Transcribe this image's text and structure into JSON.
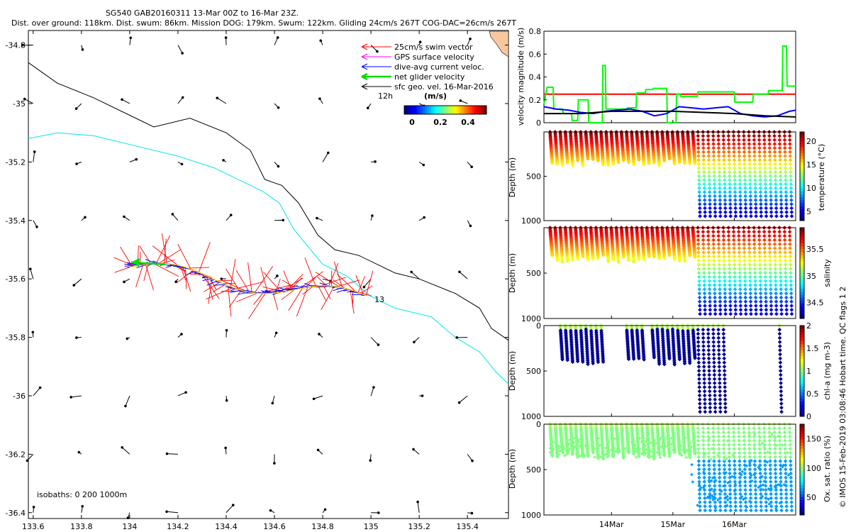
{
  "header": {
    "title_line1": "SG540 GAB20160311 13-Mar 00Z to 16-Mar 23Z.",
    "title_line2": "Dist. over ground: 118km. Dist. swum: 86km. Mission DOG: 179km. Swum: 122km. Gliding 24cm/s 267T COG-DAC=26cm/s 267T"
  },
  "map": {
    "xticks": [
      "133.6",
      "133.8",
      "134",
      "134.2",
      "134.4",
      "134.6",
      "134.8",
      "135",
      "135.2",
      "135.4"
    ],
    "xtick_values": [
      133.6,
      133.8,
      134.0,
      134.2,
      134.4,
      134.6,
      134.8,
      135.0,
      135.2,
      135.4
    ],
    "yticks": [
      "-34.8",
      "-35",
      "-35.2",
      "-35.4",
      "-35.6",
      "-35.8",
      "-36",
      "-36.2",
      "-36.4"
    ],
    "ytick_values": [
      -34.8,
      -35.0,
      -35.2,
      -35.4,
      -35.6,
      -35.8,
      -36.0,
      -36.2,
      -36.4
    ],
    "xlim": [
      133.58,
      135.57
    ],
    "ylim": [
      -36.42,
      -34.75
    ],
    "legend": [
      {
        "label": "25cm/s swim vector",
        "color": "#ff0000"
      },
      {
        "label": "GPS surface velocity",
        "color": "#ff00ff"
      },
      {
        "label": "dive-avg current veloc.",
        "color": "#0000ff"
      },
      {
        "label": "net glider velocity",
        "color": "#00dd00"
      },
      {
        "label": "sfc geo. vel. 16-Mar-2016",
        "color": "#000000"
      }
    ],
    "legend_12h": "12h",
    "colorbar_title": "(m/s)",
    "colorbar_ticks": [
      "0",
      "0.2",
      "0.4"
    ],
    "colorbar_range": [
      0,
      0.5
    ],
    "track_end_label": "13",
    "isobaths_label": "isobaths: 0   200  1000m",
    "track_start": {
      "lon": 134.0,
      "lat": -35.56
    },
    "track_end": {
      "lon": 134.98,
      "lat": -35.67
    }
  },
  "chart_data": [
    {
      "type": "line",
      "title": "",
      "ylabel": "velocity magnitude (m/s)",
      "ylim": [
        0,
        0.8
      ],
      "yticks": [
        "0",
        "0.2",
        "0.4",
        "0.6",
        "0.8"
      ],
      "ytick_values": [
        0,
        0.2,
        0.4,
        0.6,
        0.8
      ],
      "xlim": [
        12.9,
        17.0
      ],
      "series": [
        {
          "name": "swim speed 25cm/s",
          "color": "#ff0000",
          "x": [
            12.9,
            17.0
          ],
          "y": [
            0.25,
            0.25
          ]
        },
        {
          "name": "net glider velocity",
          "color": "#00ff00",
          "x": [
            12.9,
            12.95,
            12.97,
            13.05,
            13.06,
            13.2,
            13.22,
            13.35,
            13.36,
            13.45,
            13.46,
            13.62,
            13.63,
            13.85,
            13.86,
            13.9,
            13.91,
            14.25,
            14.26,
            14.4,
            14.41,
            14.55,
            14.56,
            14.67,
            14.68,
            14.9,
            14.91,
            15.05,
            15.06,
            15.12,
            15.13,
            15.4,
            15.41,
            15.55,
            15.56,
            16.0,
            16.01,
            16.3,
            16.31,
            16.55,
            16.56,
            16.78,
            16.79,
            16.85,
            16.86,
            17.0
          ],
          "y": [
            0.16,
            0.31,
            0.31,
            0.31,
            0.12,
            0.12,
            0.08,
            0.08,
            0.02,
            0.02,
            0.2,
            0.2,
            0.0,
            0.0,
            0.5,
            0.5,
            0.12,
            0.12,
            0.13,
            0.13,
            0.26,
            0.26,
            0.29,
            0.29,
            0.3,
            0.3,
            0.0,
            0.0,
            0.25,
            0.25,
            0.23,
            0.23,
            0.27,
            0.27,
            0.27,
            0.27,
            0.18,
            0.18,
            0.25,
            0.25,
            0.28,
            0.28,
            0.67,
            0.67,
            0.32,
            0.32
          ]
        },
        {
          "name": "dive-avg current",
          "color": "#0000ff",
          "x": [
            12.9,
            13.1,
            13.3,
            13.5,
            13.7,
            13.9,
            14.1,
            14.3,
            14.5,
            14.7,
            14.9,
            15.1,
            15.3,
            15.5,
            15.7,
            15.9,
            16.1,
            16.3,
            16.5,
            16.7,
            16.9,
            17.0
          ],
          "y": [
            0.14,
            0.12,
            0.11,
            0.09,
            0.08,
            0.1,
            0.11,
            0.12,
            0.1,
            0.06,
            0.08,
            0.14,
            0.13,
            0.12,
            0.13,
            0.14,
            0.08,
            0.06,
            0.05,
            0.06,
            0.1,
            0.11
          ]
        },
        {
          "name": "sfc geo velocity",
          "color": "#000000",
          "x": [
            12.9,
            13.5,
            14.0,
            14.5,
            15.0,
            15.5,
            16.0,
            16.5,
            17.0
          ],
          "y": [
            0.08,
            0.08,
            0.1,
            0.1,
            0.1,
            0.09,
            0.08,
            0.06,
            0.05
          ]
        }
      ]
    },
    {
      "type": "scatter",
      "ylabel": "Depth (m)",
      "cbar_label": "temperature (°C)",
      "cbar_ticks": [
        "5",
        "10",
        "15",
        "20"
      ],
      "cbar_range": [
        3,
        22
      ],
      "yticks": [
        "500",
        "1000"
      ],
      "ylim": [
        1000,
        0
      ],
      "profiles": {
        "shallow_depth": 300,
        "deep_depth": 950,
        "deep_start_day": 15.38,
        "n_dives": 48
      }
    },
    {
      "type": "scatter",
      "ylabel": "Depth (m)",
      "cbar_label": "salinity",
      "cbar_ticks": [
        "34.5",
        "35",
        "35.5"
      ],
      "cbar_range": [
        34.2,
        35.9
      ],
      "yticks": [
        "500",
        "1000"
      ],
      "ylim": [
        1000,
        0
      ]
    },
    {
      "type": "scatter",
      "ylabel": "Depth (m)",
      "cbar_label": "chl-a (mg m-3)",
      "cbar_ticks": [
        "0",
        "0.5",
        "1",
        "1.5",
        "2"
      ],
      "cbar_range": [
        0,
        2
      ],
      "yticks": [
        "0",
        "500",
        "1000"
      ],
      "ylim": [
        1000,
        0
      ]
    },
    {
      "type": "scatter",
      "ylabel": "Depth (m)",
      "cbar_label": "Ox. sat. ratio (%)",
      "cbar_ticks": [
        "50",
        "100",
        "150"
      ],
      "cbar_range": [
        20,
        175
      ],
      "yticks": [
        "0",
        "500",
        "1000"
      ],
      "ylim": [
        1000,
        0
      ],
      "xticks": [
        "14Mar",
        "15Mar",
        "16Mar"
      ],
      "xtick_values": [
        14,
        15,
        16
      ]
    }
  ],
  "side_note": "© IMOS 15-Feb-2019 03:08:46 Hobart time. QC flags 1  2"
}
